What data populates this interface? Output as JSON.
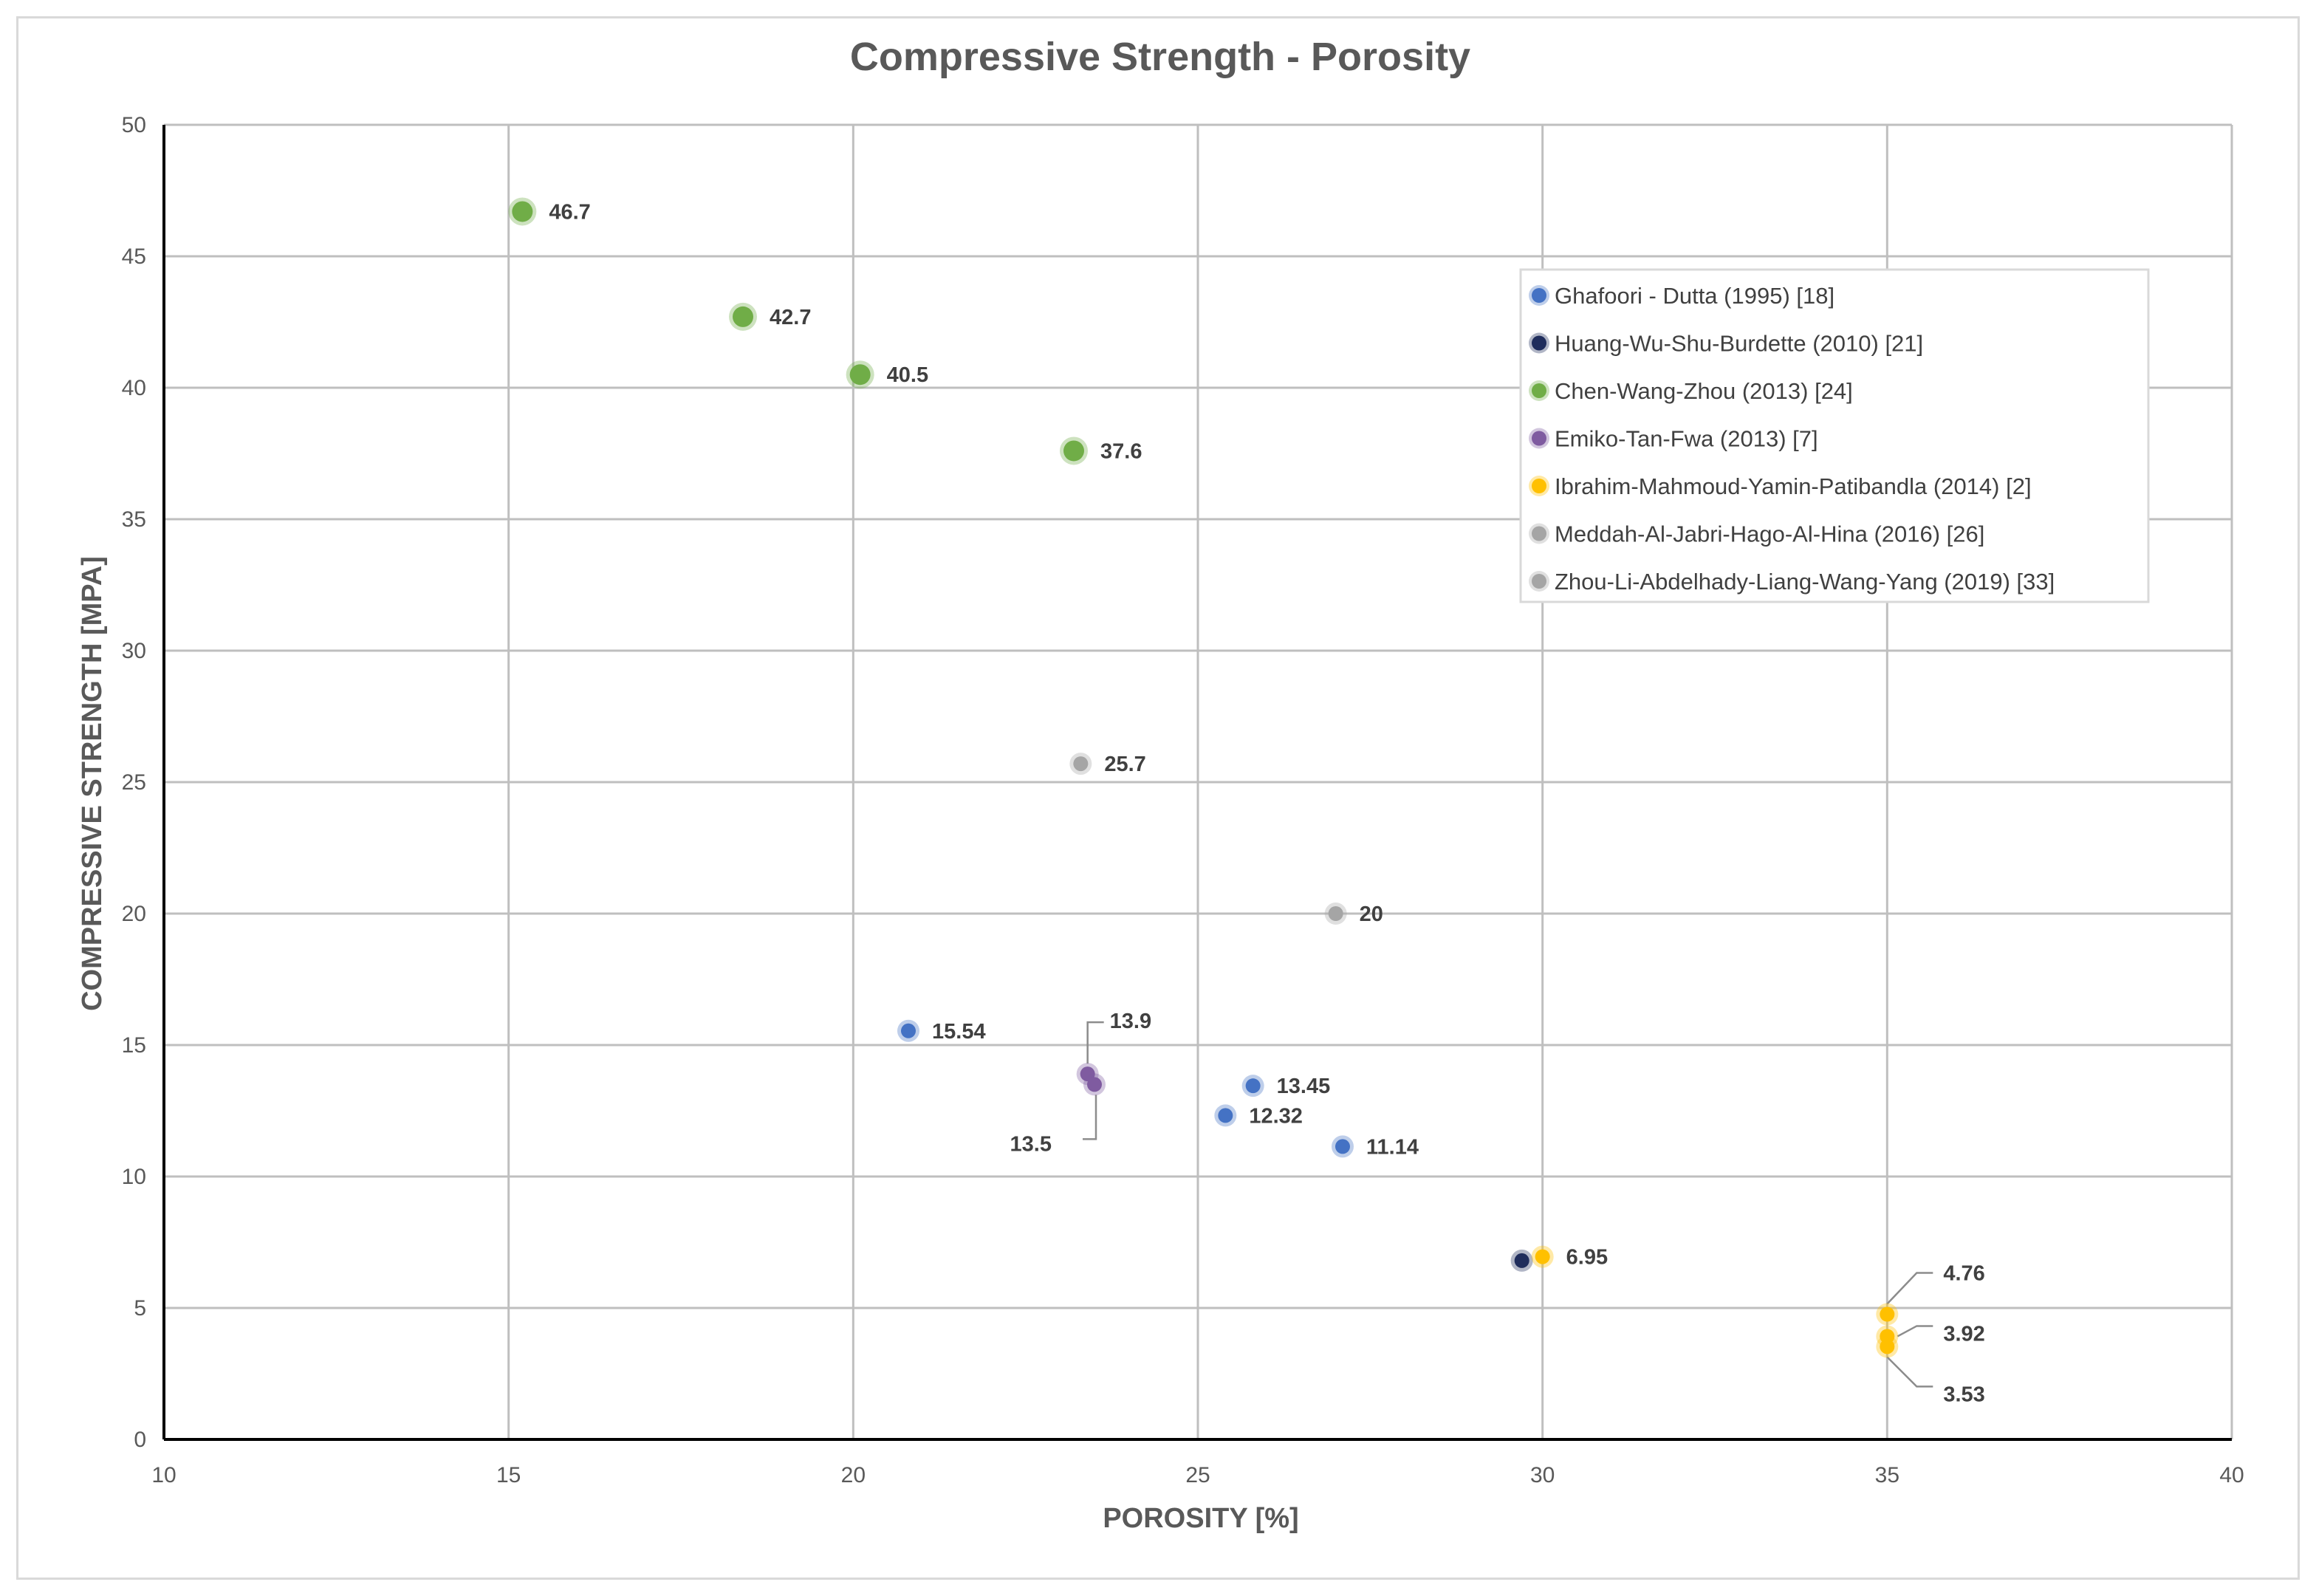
{
  "chart_data": {
    "type": "scatter",
    "title": "Compressive Strength - Porosity",
    "xlabel": "POROSITY [%]",
    "ylabel": "COMPRESSIVE STRENGTH [MPA]",
    "xlim": [
      10,
      40
    ],
    "ylim": [
      0,
      50
    ],
    "xticks": [
      10,
      15,
      20,
      25,
      30,
      35,
      40
    ],
    "yticks": [
      0,
      5,
      10,
      15,
      20,
      25,
      30,
      35,
      40,
      45,
      50
    ],
    "grid": true,
    "legend_position": "top-right",
    "series": [
      {
        "name": "Ghafoori - Dutta (1995) [18]",
        "color": "#4472c4",
        "points": [
          {
            "x": 20.8,
            "y": 15.54,
            "label": "15.54"
          },
          {
            "x": 25.8,
            "y": 13.45,
            "label": "13.45"
          },
          {
            "x": 25.4,
            "y": 12.32,
            "label": "12.32"
          },
          {
            "x": 27.1,
            "y": 11.14,
            "label": "11.14"
          }
        ]
      },
      {
        "name": "Huang-Wu-Shu-Burdette (2010) [21]",
        "color": "#1f2d5c",
        "points": [
          {
            "x": 29.7,
            "y": 6.8,
            "label": ""
          }
        ]
      },
      {
        "name": "Chen-Wang-Zhou (2013) [24]",
        "color": "#70ad47",
        "points": [
          {
            "x": 15.2,
            "y": 46.7,
            "label": "46.7"
          },
          {
            "x": 18.4,
            "y": 42.7,
            "label": "42.7"
          },
          {
            "x": 20.1,
            "y": 40.5,
            "label": "40.5"
          },
          {
            "x": 23.2,
            "y": 37.6,
            "label": "37.6"
          }
        ]
      },
      {
        "name": "Emiko-Tan-Fwa (2013) [7]",
        "color": "#7f5ba0",
        "points": [
          {
            "x": 23.4,
            "y": 13.9,
            "label": "13.9"
          },
          {
            "x": 23.5,
            "y": 13.5,
            "label": "13.5"
          }
        ]
      },
      {
        "name": "Ibrahim-Mahmoud-Yamin-Patibandla (2014) [2]",
        "color": "#ffc000",
        "points": [
          {
            "x": 30.0,
            "y": 6.95,
            "label": "6.95"
          },
          {
            "x": 35.0,
            "y": 4.76,
            "label": "4.76"
          },
          {
            "x": 35.0,
            "y": 3.92,
            "label": "3.92"
          },
          {
            "x": 35.0,
            "y": 3.53,
            "label": "3.53"
          }
        ]
      },
      {
        "name": "Meddah-Al-Jabri-Hago-Al-Hina (2016) [26]",
        "color": "#a5a5a5",
        "points": [
          {
            "x": 23.3,
            "y": 25.7,
            "label": "25.7"
          }
        ]
      },
      {
        "name": "Zhou-Li-Abdelhady-Liang-Wang-Yang (2019) [33]",
        "color": "#a5a5a5",
        "points": [
          {
            "x": 27.0,
            "y": 20.0,
            "label": "20"
          }
        ]
      }
    ]
  }
}
